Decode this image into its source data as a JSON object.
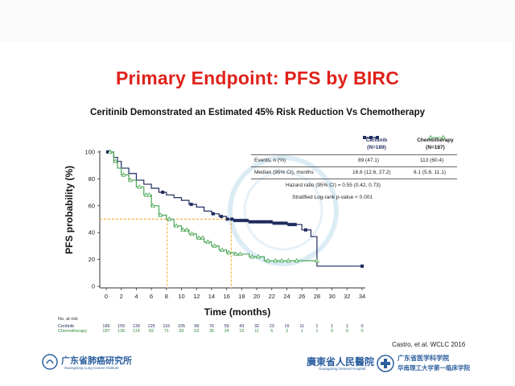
{
  "slide": {
    "title": "Primary Endpoint: PFS by BIRC",
    "subtitle": "Ceritinib Demonstrated an Estimated 45% Risk Reduction Vs Chemotherapy",
    "citation": "Castro, et al. WCLC 2016"
  },
  "table": {
    "arm1": {
      "name": "Ceritinib",
      "n": "(N=189)"
    },
    "arm2": {
      "name": "Chemotherapy",
      "n": "(N=187)"
    },
    "rows": [
      {
        "label": "Events, n (%)",
        "arm1": "89 (47.1)",
        "arm2": "113 (60.4)"
      },
      {
        "label": "Median (95% CI), months",
        "arm1": "16.6 (12.6, 27.2)",
        "arm2": "8.1 (5.8, 11.1)"
      }
    ],
    "hazard_ratio": "Hazard ratio (95% CI) = 0.55 (0.42, 0.73)",
    "pvalue": "Stratified Log-rank p-value  < 0.001"
  },
  "at_risk": {
    "title": "No. at risk",
    "arm1_label": "Ceritinib",
    "arm2_label": "Chemotherapy",
    "times": [
      0,
      2,
      4,
      6,
      8,
      10,
      12,
      14,
      16,
      18,
      20,
      22,
      24,
      26,
      28,
      30,
      32,
      34
    ],
    "arm1_counts": [
      "189",
      "155",
      "139",
      "125",
      "116",
      "105",
      "98",
      "76",
      "59",
      "43",
      "32",
      "23",
      "16",
      "11",
      "1",
      "1",
      "1",
      "0"
    ],
    "arm2_counts": [
      "187",
      "136",
      "114",
      "82",
      "71",
      "60",
      "53",
      "35",
      "24",
      "16",
      "11",
      "5",
      "3",
      "1",
      "1",
      "0",
      "0",
      "0"
    ]
  },
  "footer": {
    "logo_left": "广东省肺癌研究所",
    "logo_left_sub": "Guangdong Lung Cancer Institute",
    "logo_mid": "廣東省人民醫院",
    "logo_mid_sub": "Guangdong General Hospital",
    "logo_right_1": "广东省医学科学院",
    "logo_right_2": "华南理工大学第一临床学院"
  },
  "colors": {
    "title": "#e0221b",
    "ceritinib": "#1f2c5e",
    "chemotherapy": "#4aa653",
    "median_line": "#f5a623"
  },
  "chart_data": {
    "type": "line",
    "title": "Primary Endpoint: PFS by BIRC",
    "xlabel": "Time (months)",
    "ylabel": "PFS probability (%)",
    "xlim": [
      0,
      34
    ],
    "ylim": [
      0,
      100
    ],
    "xticks": [
      0,
      2,
      4,
      6,
      8,
      10,
      12,
      14,
      16,
      18,
      20,
      22,
      24,
      26,
      28,
      30,
      32,
      34
    ],
    "yticks": [
      0,
      20,
      40,
      60,
      80,
      100
    ],
    "step": true,
    "series": [
      {
        "name": "Ceritinib",
        "x": [
          0,
          1,
          1.5,
          2,
          3,
          4,
          5,
          6,
          7,
          8,
          9,
          10,
          11,
          12,
          13,
          14,
          15,
          16,
          17,
          19,
          22,
          24,
          26,
          27.2,
          28,
          34
        ],
        "y": [
          100,
          96,
          93,
          88,
          84,
          79,
          76,
          73,
          70,
          68,
          66,
          64,
          61,
          59,
          56,
          54,
          52,
          50,
          49,
          48,
          47,
          46,
          42,
          37,
          15,
          15
        ]
      },
      {
        "name": "Chemotherapy",
        "x": [
          0,
          1,
          1.5,
          2,
          3,
          4,
          5,
          6,
          7,
          8,
          9,
          10,
          11,
          12,
          13,
          14,
          15,
          16,
          17,
          19,
          21,
          28
        ],
        "y": [
          100,
          93,
          88,
          83,
          79,
          74,
          68,
          60,
          53,
          50,
          45,
          42,
          39,
          36,
          33,
          30,
          27,
          25,
          24,
          22,
          19,
          19
        ]
      }
    ],
    "medians": [
      {
        "series": "Ceritinib",
        "x": 16.6,
        "y": 50
      },
      {
        "series": "Chemotherapy",
        "x": 8.1,
        "y": 50
      }
    ]
  }
}
